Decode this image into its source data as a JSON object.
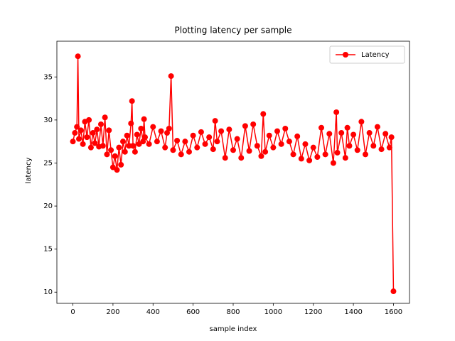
{
  "chart_data": {
    "type": "line",
    "title": "Plotting latency per sample",
    "xlabel": "sample index",
    "ylabel": "latency",
    "x": [
      0,
      10,
      20,
      25,
      30,
      40,
      50,
      60,
      70,
      80,
      90,
      100,
      110,
      120,
      130,
      140,
      150,
      160,
      170,
      180,
      190,
      200,
      210,
      220,
      230,
      240,
      250,
      260,
      270,
      280,
      290,
      295,
      300,
      310,
      320,
      330,
      340,
      350,
      355,
      360,
      380,
      400,
      420,
      440,
      460,
      470,
      480,
      490,
      500,
      520,
      540,
      560,
      580,
      600,
      620,
      640,
      660,
      680,
      700,
      710,
      720,
      740,
      760,
      780,
      800,
      820,
      840,
      860,
      880,
      900,
      920,
      940,
      950,
      960,
      980,
      1000,
      1020,
      1040,
      1060,
      1080,
      1100,
      1120,
      1140,
      1160,
      1180,
      1200,
      1220,
      1240,
      1260,
      1280,
      1300,
      1315,
      1320,
      1340,
      1360,
      1370,
      1380,
      1400,
      1420,
      1440,
      1460,
      1480,
      1500,
      1520,
      1540,
      1560,
      1580,
      1590,
      1600
    ],
    "series": [
      {
        "name": "Latency",
        "color": "#ff0000",
        "marker": "o",
        "values": [
          27.5,
          28.5,
          29.2,
          37.4,
          27.8,
          28.8,
          27.2,
          29.8,
          28.0,
          30.0,
          26.8,
          28.5,
          27.3,
          28.9,
          26.9,
          29.5,
          27.0,
          30.3,
          26.0,
          28.8,
          26.5,
          24.5,
          25.8,
          24.2,
          26.8,
          24.8,
          27.5,
          26.3,
          28.2,
          27.0,
          29.6,
          32.2,
          27.0,
          26.3,
          28.3,
          27.2,
          29.0,
          27.5,
          30.1,
          28.0,
          27.2,
          29.2,
          27.5,
          28.7,
          26.8,
          28.5,
          29.0,
          35.1,
          26.5,
          27.6,
          26.0,
          27.5,
          26.3,
          28.2,
          26.8,
          28.6,
          27.2,
          28.0,
          26.6,
          29.9,
          27.5,
          28.7,
          25.6,
          28.9,
          26.5,
          27.8,
          25.6,
          29.3,
          26.4,
          29.5,
          27.0,
          25.8,
          30.7,
          26.3,
          28.2,
          26.8,
          28.7,
          27.2,
          29.0,
          27.5,
          26.0,
          28.1,
          25.5,
          27.2,
          25.3,
          26.8,
          25.7,
          29.1,
          26.0,
          28.4,
          25.0,
          30.9,
          26.2,
          28.5,
          25.6,
          29.1,
          27.0,
          28.3,
          26.5,
          29.8,
          26.0,
          28.5,
          27.0,
          29.2,
          26.6,
          28.4,
          26.8,
          28.0,
          10.1
        ]
      }
    ],
    "xlim": [
      -80,
      1680
    ],
    "ylim": [
      8.7,
      39.15
    ],
    "xticks": [
      0,
      200,
      400,
      600,
      800,
      1000,
      1200,
      1400,
      1600
    ],
    "yticks": [
      10,
      15,
      20,
      25,
      30,
      35
    ],
    "legend": "upper right"
  }
}
